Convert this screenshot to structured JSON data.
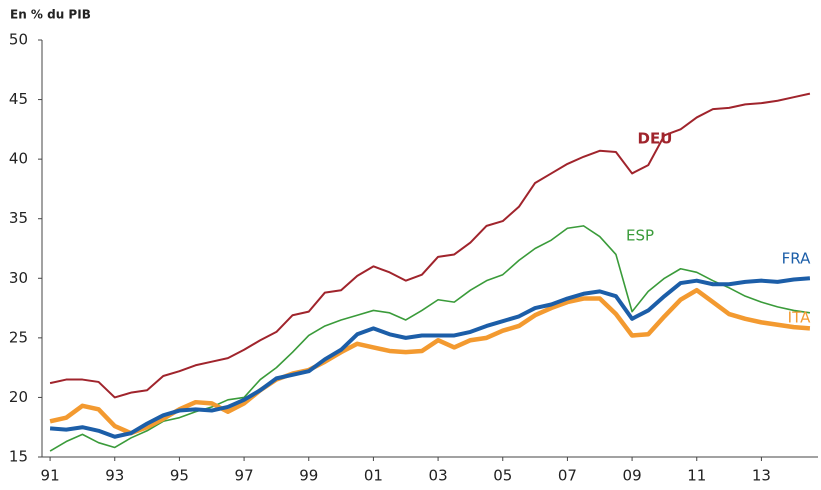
{
  "chart_data": {
    "type": "line",
    "ylabel": "En % du PIB",
    "x": [
      1991,
      1991.5,
      1992,
      1992.5,
      1993,
      1993.5,
      1994,
      1994.5,
      1995,
      1995.5,
      1996,
      1996.5,
      1997,
      1997.5,
      1998,
      1998.5,
      1999,
      1999.5,
      2000,
      2000.5,
      2001,
      2001.5,
      2002,
      2002.5,
      2003,
      2003.5,
      2004,
      2004.5,
      2005,
      2005.5,
      2006,
      2006.5,
      2007,
      2007.5,
      2008,
      2008.5,
      2009,
      2009.5,
      2010,
      2010.5,
      2011,
      2011.5,
      2012,
      2012.5,
      2013,
      2013.5,
      2014,
      2014.5
    ],
    "series": [
      {
        "name": "DEU",
        "color": "#a0242c",
        "values": [
          21.2,
          21.5,
          21.5,
          21.3,
          20.0,
          20.4,
          20.6,
          21.8,
          22.2,
          22.7,
          23.0,
          23.3,
          24.0,
          24.8,
          25.5,
          26.9,
          27.2,
          28.8,
          29.0,
          30.2,
          31.0,
          30.5,
          29.8,
          30.3,
          31.8,
          32.0,
          33.0,
          34.4,
          34.8,
          36.0,
          38.0,
          38.8,
          39.6,
          40.2,
          40.7,
          40.6,
          38.8,
          39.5,
          42.0,
          42.5,
          43.5,
          44.2,
          44.3,
          44.6,
          44.7,
          44.9,
          45.2,
          45.5
        ]
      },
      {
        "name": "ESP",
        "color": "#3a9b3a",
        "values": [
          15.5,
          16.3,
          16.9,
          16.2,
          15.8,
          16.6,
          17.2,
          18.0,
          18.3,
          18.8,
          19.2,
          19.8,
          20.0,
          21.5,
          22.5,
          23.8,
          25.2,
          26.0,
          26.5,
          26.9,
          27.3,
          27.1,
          26.5,
          27.3,
          28.2,
          28.0,
          29.0,
          29.8,
          30.3,
          31.5,
          32.5,
          33.2,
          34.2,
          34.4,
          33.5,
          32.0,
          27.2,
          28.9,
          30.0,
          30.8,
          30.5,
          29.8,
          29.2,
          28.5,
          28.0,
          27.6,
          27.3,
          27.1
        ]
      },
      {
        "name": "FRA",
        "color": "#1c5ea8",
        "values": [
          17.4,
          17.3,
          17.5,
          17.2,
          16.7,
          17.0,
          17.8,
          18.5,
          18.9,
          19.0,
          18.9,
          19.2,
          19.8,
          20.6,
          21.6,
          21.9,
          22.2,
          23.2,
          24.0,
          25.3,
          25.8,
          25.3,
          25.0,
          25.2,
          25.2,
          25.2,
          25.5,
          26.0,
          26.4,
          26.8,
          27.5,
          27.8,
          28.3,
          28.7,
          28.9,
          28.5,
          26.6,
          27.3,
          28.5,
          29.6,
          29.8,
          29.5,
          29.5,
          29.7,
          29.8,
          29.7,
          29.9,
          30.0
        ]
      },
      {
        "name": "ITA",
        "color": "#f39a30",
        "values": [
          18.0,
          18.3,
          19.3,
          19.0,
          17.6,
          17.0,
          17.5,
          18.2,
          19.0,
          19.6,
          19.5,
          18.8,
          19.5,
          20.6,
          21.5,
          22.0,
          22.3,
          23.0,
          23.8,
          24.5,
          24.2,
          23.9,
          23.8,
          23.9,
          24.8,
          24.2,
          24.8,
          25.0,
          25.6,
          26.0,
          26.9,
          27.5,
          28.0,
          28.3,
          28.3,
          27.0,
          25.2,
          25.3,
          26.8,
          28.2,
          29.0,
          28.0,
          27.0,
          26.6,
          26.3,
          26.1,
          25.9,
          25.8
        ]
      }
    ],
    "xlim": [
      1990.75,
      2014.75
    ],
    "xticks": [
      {
        "value": 1991,
        "label": "91"
      },
      {
        "value": 1993,
        "label": "93"
      },
      {
        "value": 1995,
        "label": "95"
      },
      {
        "value": 1997,
        "label": "97"
      },
      {
        "value": 1999,
        "label": "99"
      },
      {
        "value": 2001,
        "label": "01"
      },
      {
        "value": 2003,
        "label": "03"
      },
      {
        "value": 2005,
        "label": "05"
      },
      {
        "value": 2007,
        "label": "07"
      },
      {
        "value": 2009,
        "label": "09"
      },
      {
        "value": 2011,
        "label": "11"
      },
      {
        "value": 2013,
        "label": "13"
      }
    ],
    "ylim": [
      15,
      50
    ],
    "yticks": [
      15,
      20,
      25,
      30,
      35,
      40,
      45,
      50
    ]
  }
}
